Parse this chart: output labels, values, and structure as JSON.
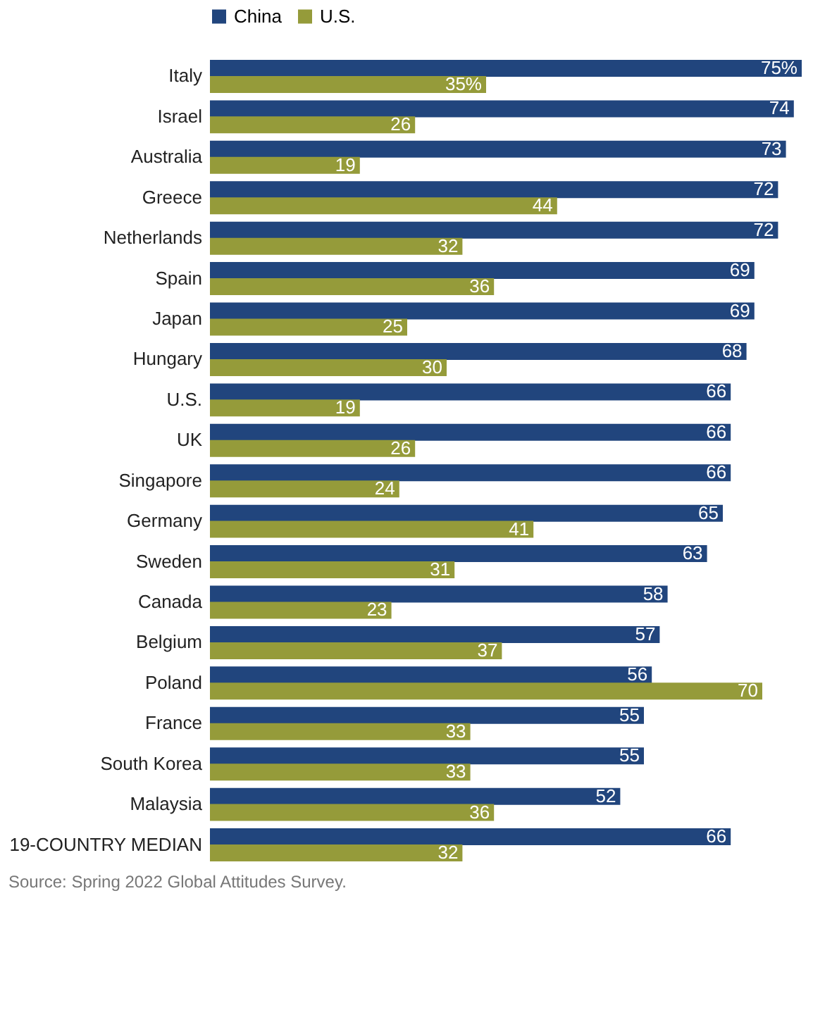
{
  "chart_data": {
    "type": "bar",
    "orientation": "horizontal",
    "categories": [
      "Italy",
      "Israel",
      "Australia",
      "Greece",
      "Netherlands",
      "Spain",
      "Japan",
      "Hungary",
      "U.S.",
      "UK",
      "Singapore",
      "Germany",
      "Sweden",
      "Canada",
      "Belgium",
      "Poland",
      "France",
      "South Korea",
      "Malaysia",
      "19-COUNTRY MEDIAN"
    ],
    "series": [
      {
        "name": "China",
        "color": "#21457d",
        "values": [
          75,
          74,
          73,
          72,
          72,
          69,
          69,
          68,
          66,
          66,
          66,
          65,
          63,
          58,
          57,
          56,
          55,
          55,
          52,
          66
        ],
        "value_labels": [
          "75%",
          "74",
          "73",
          "72",
          "72",
          "69",
          "69",
          "68",
          "66",
          "66",
          "66",
          "65",
          "63",
          "58",
          "57",
          "56",
          "55",
          "55",
          "52",
          "66"
        ]
      },
      {
        "name": "U.S.",
        "color": "#959b3a",
        "values": [
          35,
          26,
          19,
          44,
          32,
          36,
          25,
          30,
          19,
          26,
          24,
          41,
          31,
          23,
          37,
          70,
          33,
          33,
          36,
          32
        ],
        "value_labels": [
          "35%",
          "26",
          "19",
          "44",
          "32",
          "36",
          "25",
          "30",
          "19",
          "26",
          "24",
          "41",
          "31",
          "23",
          "37",
          "70",
          "33",
          "33",
          "36",
          "32"
        ]
      }
    ],
    "legend": "top",
    "annotations": [
      "Source: Spring 2022 Global Attitudes Survey."
    ]
  }
}
